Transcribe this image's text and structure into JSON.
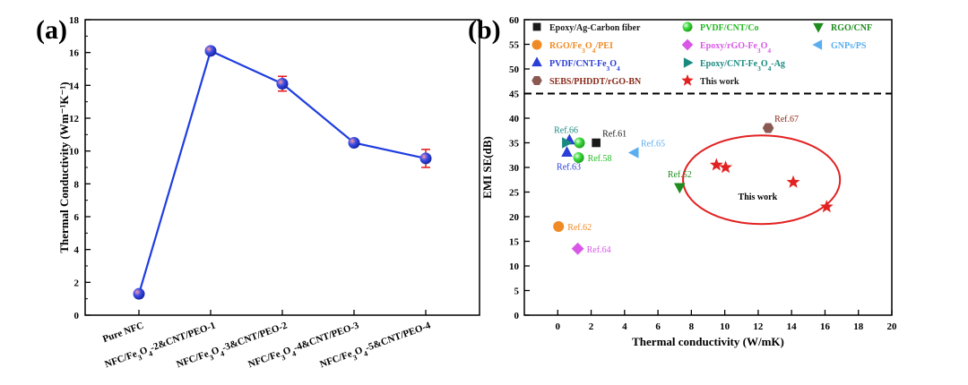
{
  "chart_data": [
    {
      "panel": "(a)",
      "type": "line",
      "ylabel": "Thermal Conductivity (Wm⁻¹K⁻¹)",
      "ylim": [
        0,
        18
      ],
      "yticks": [
        0,
        2,
        4,
        6,
        8,
        10,
        12,
        14,
        16,
        18
      ],
      "categories": [
        {
          "label": "Pure NFC",
          "rich": [
            [
              "Pure NFC",
              0
            ]
          ]
        },
        {
          "label": "NFC/Fe3O4-2&CNT/PEO-1",
          "rich": [
            [
              "NFC/Fe",
              0
            ],
            [
              "3",
              1
            ],
            [
              "O",
              0
            ],
            [
              "4",
              1
            ],
            [
              "-2&CNT/PEO-1",
              0
            ]
          ]
        },
        {
          "label": "NFC/Fe3O4-3&CNT/PEO-2",
          "rich": [
            [
              "NFC/Fe",
              0
            ],
            [
              "3",
              1
            ],
            [
              "O",
              0
            ],
            [
              "4",
              1
            ],
            [
              "-3&CNT/PEO-2",
              0
            ]
          ]
        },
        {
          "label": "NFC/Fe3O4-4&CNT/PEO-3",
          "rich": [
            [
              "NFC/Fe",
              0
            ],
            [
              "3",
              1
            ],
            [
              "O",
              0
            ],
            [
              "4",
              1
            ],
            [
              "-4&CNT/PEO-3",
              0
            ]
          ]
        },
        {
          "label": "NFC/Fe3O4-5&CNT/PEO-4",
          "rich": [
            [
              "NFC/Fe",
              0
            ],
            [
              "3",
              1
            ],
            [
              "O",
              0
            ],
            [
              "4",
              1
            ],
            [
              "-5&CNT/PEO-4",
              0
            ]
          ]
        }
      ],
      "values": [
        1.3,
        16.1,
        14.1,
        10.5,
        9.55
      ],
      "errors": [
        0.1,
        0.15,
        0.45,
        0.15,
        0.55
      ],
      "line_color": "#1f3de0",
      "marker_color": "#1e3fdc",
      "error_color": "#e21b1b"
    },
    {
      "panel": "(b)",
      "type": "scatter",
      "xlabel": "Thermal conductivity (W/mK)",
      "ylabel": "EMI SE(dB)",
      "xlim": [
        -2,
        20
      ],
      "ylim": [
        0,
        60
      ],
      "xticks": [
        0,
        2,
        4,
        6,
        8,
        10,
        12,
        14,
        16,
        18,
        20
      ],
      "yticks": [
        0,
        5,
        10,
        15,
        20,
        25,
        30,
        35,
        40,
        45,
        50,
        55,
        60
      ],
      "threshold": 45,
      "legend": [
        {
          "shape": "square",
          "color": "#1a1a1a",
          "text_color": "#1a1a1a",
          "rich": [
            [
              "Epoxy/Ag-Carbon fiber",
              0
            ]
          ]
        },
        {
          "shape": "sphere",
          "color": "#2ecc2e",
          "text_color": "#22bb22",
          "rich": [
            [
              "PVDF/CNT/Co",
              0
            ]
          ]
        },
        {
          "shape": "triangle-down",
          "color": "#1e8c1e",
          "text_color": "#1e8c1e",
          "rich": [
            [
              "RGO/CNF",
              0
            ]
          ]
        },
        {
          "shape": "circle",
          "color": "#f08a24",
          "text_color": "#f08a24",
          "rich": [
            [
              "RGO/Fe",
              0
            ],
            [
              "3",
              1
            ],
            [
              "O",
              0
            ],
            [
              "4",
              1
            ],
            [
              "/PEI",
              0
            ]
          ]
        },
        {
          "shape": "diamond",
          "color": "#d957e8",
          "text_color": "#d957e8",
          "rich": [
            [
              "Epoxy/rGO-Fe",
              0
            ],
            [
              "3",
              1
            ],
            [
              "O",
              0
            ],
            [
              "4",
              1
            ]
          ]
        },
        {
          "shape": "triangle-left",
          "color": "#5aaef0",
          "text_color": "#5aaef0",
          "rich": [
            [
              "GNPs/PS",
              0
            ]
          ]
        },
        {
          "shape": "triangle-up",
          "color": "#2a3ed8",
          "text_color": "#2a3ed8",
          "rich": [
            [
              "PVDF/CNT-Fe",
              0
            ],
            [
              "3",
              1
            ],
            [
              "O",
              0
            ],
            [
              "4",
              1
            ]
          ]
        },
        {
          "shape": "triangle-right",
          "color": "#1a8a80",
          "text_color": "#1a8a80",
          "rich": [
            [
              "Epoxy/CNT-Fe",
              0
            ],
            [
              "3",
              1
            ],
            [
              "O",
              0
            ],
            [
              "4",
              1
            ],
            [
              "-Ag",
              0
            ]
          ]
        },
        {
          "shape": "hexagon",
          "color": "#8a5a52",
          "text_color": "#8a2a1a",
          "rich": [
            [
              "SEBS/PHDDT/rGO-BN",
              0
            ]
          ]
        },
        {
          "shape": "star",
          "color": "#e22222",
          "text_color": "#1a1a1a",
          "rich": [
            [
              "This work",
              0
            ]
          ]
        }
      ],
      "points": [
        {
          "shape": "square",
          "color": "#1a1a1a",
          "x": 2.3,
          "y": 35,
          "label": "Ref.61",
          "label_color": "#1a1a1a",
          "anchor": "tr"
        },
        {
          "shape": "sphere",
          "color": "#2ecc2e",
          "x": 1.3,
          "y": 35,
          "label": "",
          "label_color": "#22bb22",
          "anchor": "r"
        },
        {
          "shape": "sphere",
          "color": "#2ecc2e",
          "x": 1.25,
          "y": 32,
          "label": "Ref.58",
          "label_color": "#22bb22",
          "anchor": "r"
        },
        {
          "shape": "triangle-down",
          "color": "#1e8c1e",
          "x": 7.3,
          "y": 26,
          "label": "Ref.52",
          "label_color": "#1e8c1e",
          "anchor": "t"
        },
        {
          "shape": "circle",
          "color": "#f08a24",
          "x": 0.05,
          "y": 18,
          "label": "Ref.62",
          "label_color": "#f08a24",
          "anchor": "r"
        },
        {
          "shape": "diamond",
          "color": "#d957e8",
          "x": 1.2,
          "y": 13.5,
          "label": "Ref.64",
          "label_color": "#d957e8",
          "anchor": "r"
        },
        {
          "shape": "triangle-left",
          "color": "#5aaef0",
          "x": 4.6,
          "y": 33,
          "label": "Ref.65",
          "label_color": "#5aaef0",
          "anchor": "tr"
        },
        {
          "shape": "triangle-up",
          "color": "#2a3ed8",
          "x": 0.55,
          "y": 33,
          "label": "Ref.63",
          "label_color": "#2a3ed8",
          "anchor": "b"
        },
        {
          "shape": "triangle-up",
          "color": "#2a3ed8",
          "x": 0.7,
          "y": 35.5,
          "label": "",
          "label_color": "#2a3ed8",
          "anchor": "r"
        },
        {
          "shape": "triangle-right",
          "color": "#1a8a80",
          "x": 0.5,
          "y": 35,
          "label": "Ref.66",
          "label_color": "#1a8a80",
          "anchor": "t"
        },
        {
          "shape": "hexagon",
          "color": "#8a5a52",
          "x": 12.6,
          "y": 38,
          "label": "Ref.67",
          "label_color": "#8a2a1a",
          "anchor": "tr"
        },
        {
          "shape": "star",
          "color": "#e22222",
          "x": 9.5,
          "y": 30.5,
          "label": "",
          "label_color": "#e22222",
          "anchor": "r"
        },
        {
          "shape": "star",
          "color": "#e22222",
          "x": 10.05,
          "y": 30,
          "label": "",
          "label_color": "#e22222",
          "anchor": "r"
        },
        {
          "shape": "star",
          "color": "#e22222",
          "x": 14.1,
          "y": 27,
          "label": "",
          "label_color": "#e22222",
          "anchor": "r"
        },
        {
          "shape": "star",
          "color": "#e22222",
          "x": 16.1,
          "y": 22,
          "label": "",
          "label_color": "#e22222",
          "anchor": "r"
        }
      ],
      "ellipse": {
        "cx": 12.2,
        "cy": 27.5,
        "rx": 4.7,
        "ry": 9,
        "color": "#e22222"
      },
      "annotation": {
        "text": "This work",
        "x": 10.8,
        "y": 23.5
      }
    }
  ]
}
